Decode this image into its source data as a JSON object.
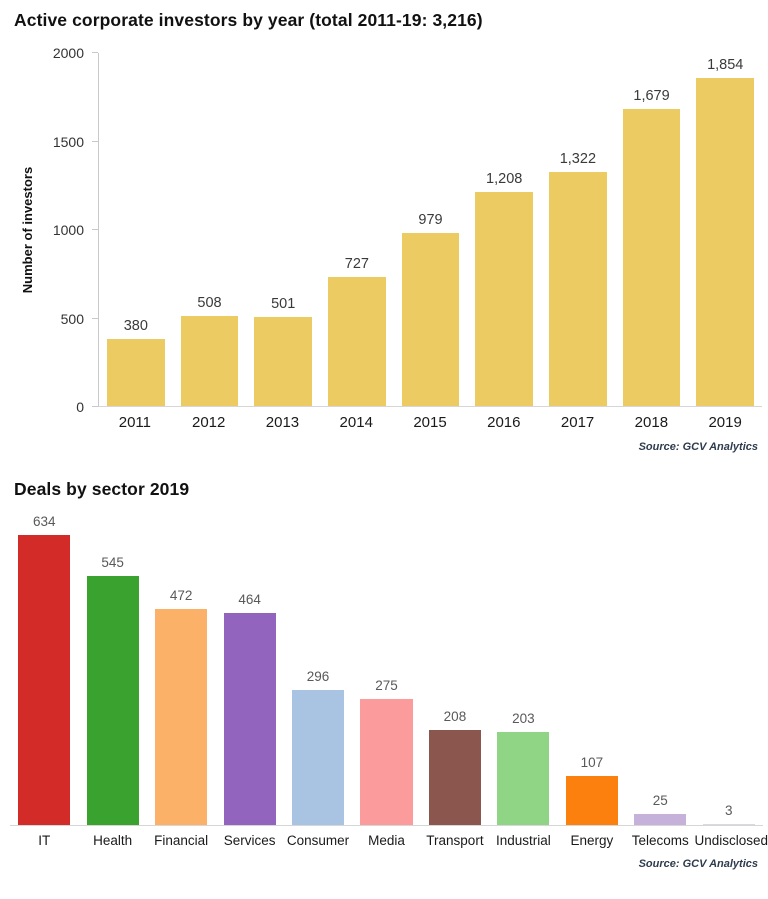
{
  "chart_data": [
    {
      "type": "bar",
      "title": "Active corporate investors by year (total 2011-19: 3,216)",
      "categories": [
        "2011",
        "2012",
        "2013",
        "2014",
        "2015",
        "2016",
        "2017",
        "2018",
        "2019"
      ],
      "values": [
        380,
        508,
        501,
        727,
        979,
        1208,
        1322,
        1679,
        1854
      ],
      "value_labels": [
        "380",
        "508",
        "501",
        "727",
        "979",
        "1,208",
        "1,322",
        "1,679",
        "1,854"
      ],
      "xlabel": "",
      "ylabel": "Number of investors",
      "yticks": [
        0,
        500,
        1000,
        1500,
        2000
      ],
      "ylim": [
        0,
        2000
      ],
      "grid": false,
      "legend": false,
      "bar_color": "#EBCB62",
      "source": "Source: GCV Analytics"
    },
    {
      "type": "bar",
      "title": "Deals by sector 2019",
      "categories": [
        "IT",
        "Health",
        "Financial",
        "Services",
        "Consumer",
        "Media",
        "Transport",
        "Industrial",
        "Energy",
        "Telecoms",
        "Undisclosed"
      ],
      "values": [
        634,
        545,
        472,
        464,
        296,
        275,
        208,
        203,
        107,
        25,
        3
      ],
      "value_labels": [
        "634",
        "545",
        "472",
        "464",
        "296",
        "275",
        "208",
        "203",
        "107",
        "25",
        "3"
      ],
      "xlabel": "",
      "ylabel": "",
      "yticks": [],
      "ylim": [
        0,
        650
      ],
      "grid": false,
      "legend": false,
      "bar_colors": [
        "#D32B28",
        "#3AA22F",
        "#FBB167",
        "#9264BE",
        "#A9C3E3",
        "#FB9B9B",
        "#8A564D",
        "#8FD585",
        "#FB800D",
        "#C6B1DB",
        "#D9D9E6"
      ],
      "source": "Source: GCV Analytics"
    }
  ]
}
